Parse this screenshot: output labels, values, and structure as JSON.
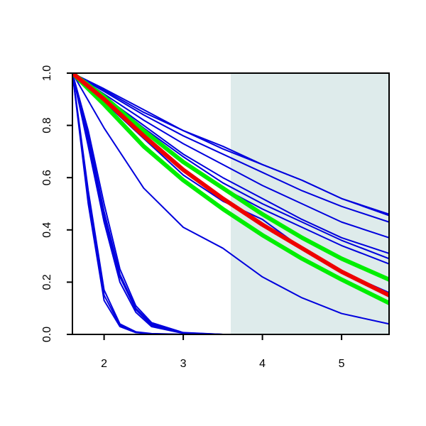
{
  "chart_data": {
    "type": "line",
    "title": "",
    "xlabel": "",
    "ylabel": "",
    "xlim": [
      1.6,
      5.6
    ],
    "ylim": [
      0.0,
      1.0
    ],
    "x_ticks": [
      2,
      3,
      4,
      5
    ],
    "x_tick_labels": [
      "2",
      "3",
      "4",
      "5"
    ],
    "y_ticks": [
      0.0,
      0.2,
      0.4,
      0.6,
      0.8,
      1.0
    ],
    "y_tick_labels": [
      "0.0",
      "0.2",
      "0.4",
      "0.6",
      "0.8",
      "1.0"
    ],
    "grid": false,
    "shaded_region": {
      "x_start": 3.6,
      "x_end": 5.6,
      "color": "#deebeb"
    },
    "colors": {
      "blue": "#0000dd",
      "green": "#00ee00",
      "red": "#ee0000",
      "axis": "#000000"
    },
    "series": [
      {
        "color": "blue",
        "style": "thin",
        "x": [
          1.6,
          1.8,
          2.0,
          2.2,
          2.4,
          2.6,
          3.0
        ],
        "y": [
          1.0,
          0.55,
          0.17,
          0.04,
          0.01,
          0.003,
          0.0
        ]
      },
      {
        "color": "blue",
        "style": "thin",
        "x": [
          1.6,
          1.8,
          2.0,
          2.2,
          2.4,
          2.6,
          3.0
        ],
        "y": [
          1.0,
          0.52,
          0.15,
          0.035,
          0.008,
          0.002,
          0.0
        ]
      },
      {
        "color": "blue",
        "style": "thin",
        "x": [
          1.6,
          1.8,
          2.0,
          2.2,
          2.4,
          2.6,
          3.0
        ],
        "y": [
          1.0,
          0.5,
          0.13,
          0.03,
          0.007,
          0.002,
          0.0
        ]
      },
      {
        "color": "blue",
        "style": "thin",
        "x": [
          1.6,
          1.8,
          2.0,
          2.2,
          2.4,
          2.6,
          3.0,
          3.5
        ],
        "y": [
          1.0,
          0.78,
          0.5,
          0.25,
          0.11,
          0.045,
          0.007,
          0.0
        ]
      },
      {
        "color": "blue",
        "style": "thin",
        "x": [
          1.6,
          1.8,
          2.0,
          2.2,
          2.4,
          2.6,
          3.0,
          3.5
        ],
        "y": [
          1.0,
          0.76,
          0.47,
          0.23,
          0.1,
          0.04,
          0.006,
          0.0
        ]
      },
      {
        "color": "blue",
        "style": "thin",
        "x": [
          1.6,
          1.8,
          2.0,
          2.2,
          2.4,
          2.6,
          3.0,
          3.5
        ],
        "y": [
          1.0,
          0.74,
          0.45,
          0.22,
          0.095,
          0.035,
          0.005,
          0.0
        ]
      },
      {
        "color": "blue",
        "style": "thin",
        "x": [
          1.6,
          1.8,
          2.0,
          2.2,
          2.4,
          2.6,
          3.0,
          3.5
        ],
        "y": [
          1.0,
          0.72,
          0.43,
          0.2,
          0.085,
          0.03,
          0.004,
          0.0
        ]
      },
      {
        "color": "blue",
        "style": "thin",
        "x": [
          1.6,
          2.0,
          2.5,
          3.0,
          3.5,
          4.0,
          4.5,
          5.0,
          5.6
        ],
        "y": [
          1.0,
          0.79,
          0.56,
          0.41,
          0.33,
          0.22,
          0.14,
          0.08,
          0.04
        ]
      },
      {
        "color": "blue",
        "style": "thin",
        "x": [
          1.6,
          2.0,
          2.5,
          3.0,
          3.5,
          4.0,
          4.5,
          5.0,
          5.6
        ],
        "y": [
          1.0,
          0.89,
          0.75,
          0.61,
          0.51,
          0.44,
          0.33,
          0.24,
          0.16
        ]
      },
      {
        "color": "blue",
        "style": "thin",
        "x": [
          1.6,
          2.0,
          2.5,
          3.0,
          3.5,
          4.0,
          4.5,
          5.0,
          5.6
        ],
        "y": [
          1.0,
          0.9,
          0.78,
          0.66,
          0.56,
          0.48,
          0.41,
          0.34,
          0.27
        ]
      },
      {
        "color": "blue",
        "style": "thin",
        "x": [
          1.6,
          2.0,
          2.5,
          3.0,
          3.5,
          4.0,
          4.5,
          5.0,
          5.6
        ],
        "y": [
          1.0,
          0.91,
          0.79,
          0.68,
          0.58,
          0.5,
          0.43,
          0.36,
          0.29
        ]
      },
      {
        "color": "blue",
        "style": "thin",
        "x": [
          1.6,
          2.0,
          2.5,
          3.0,
          3.5,
          4.0,
          4.5,
          5.0,
          5.6
        ],
        "y": [
          1.0,
          0.91,
          0.8,
          0.69,
          0.6,
          0.52,
          0.44,
          0.37,
          0.31
        ]
      },
      {
        "color": "blue",
        "style": "thin",
        "x": [
          1.6,
          2.0,
          2.5,
          3.0,
          3.5,
          4.0,
          4.5,
          5.0,
          5.6
        ],
        "y": [
          1.0,
          0.92,
          0.82,
          0.73,
          0.65,
          0.57,
          0.5,
          0.43,
          0.37
        ]
      },
      {
        "color": "blue",
        "style": "thin",
        "x": [
          1.6,
          2.0,
          2.5,
          3.0,
          3.5,
          4.0,
          4.5,
          5.0,
          5.6
        ],
        "y": [
          1.0,
          0.93,
          0.84,
          0.76,
          0.69,
          0.62,
          0.55,
          0.49,
          0.43
        ]
      },
      {
        "color": "blue",
        "style": "thin",
        "x": [
          1.6,
          2.0,
          2.5,
          3.0,
          3.5,
          4.0,
          4.5,
          5.0,
          5.6
        ],
        "y": [
          1.0,
          0.935,
          0.85,
          0.78,
          0.71,
          0.65,
          0.59,
          0.52,
          0.46
        ]
      },
      {
        "color": "blue",
        "style": "thin",
        "x": [
          1.6,
          2.0,
          2.5,
          3.0,
          3.5,
          4.0,
          4.5,
          5.0,
          5.6
        ],
        "y": [
          1.0,
          0.94,
          0.86,
          0.78,
          0.72,
          0.65,
          0.59,
          0.52,
          0.455
        ]
      },
      {
        "color": "green",
        "style": "thick",
        "x": [
          1.6,
          2.0,
          2.5,
          3.0,
          3.5,
          4.0,
          4.5,
          5.0,
          5.6
        ],
        "y": [
          1.0,
          0.88,
          0.72,
          0.59,
          0.48,
          0.38,
          0.29,
          0.21,
          0.12
        ]
      },
      {
        "color": "green",
        "style": "thick",
        "x": [
          1.6,
          2.0,
          2.5,
          3.0,
          3.5,
          4.0,
          4.5,
          5.0,
          5.6
        ],
        "y": [
          1.0,
          0.91,
          0.78,
          0.66,
          0.56,
          0.46,
          0.37,
          0.29,
          0.21
        ]
      },
      {
        "color": "red",
        "style": "thick",
        "x": [
          1.6,
          2.0,
          2.5,
          3.0,
          3.5,
          4.0,
          4.5,
          5.0,
          5.6
        ],
        "y": [
          1.0,
          0.9,
          0.76,
          0.63,
          0.52,
          0.42,
          0.33,
          0.24,
          0.15
        ]
      }
    ]
  }
}
